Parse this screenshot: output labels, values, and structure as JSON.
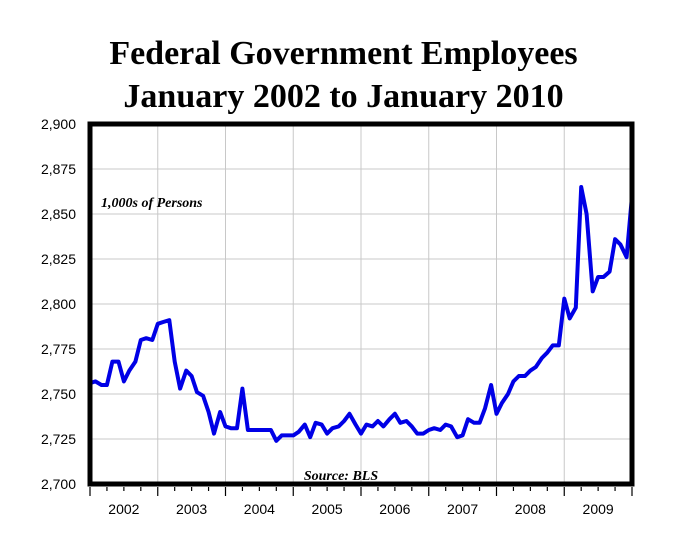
{
  "header": {
    "title_line1": "Federal Government Employees",
    "title_line2": "January 2002 to January 2010"
  },
  "chart_data": {
    "type": "line",
    "title": "Federal Government Employees January 2002 to January 2010",
    "xlabel": "",
    "ylabel": "",
    "ylim": [
      2700,
      2900
    ],
    "xlim": [
      2002.0,
      2010.0
    ],
    "grid": true,
    "line_color": "#0000e6",
    "y_ticks": [
      "2,700",
      "2,725",
      "2,750",
      "2,775",
      "2,800",
      "2,825",
      "2,850",
      "2,875",
      "2,900"
    ],
    "x_tick_labels": [
      "2002",
      "2003",
      "2004",
      "2005",
      "2006",
      "2007",
      "2008",
      "2009"
    ],
    "annotations": {
      "units": "1,000s of Persons",
      "source": "Source: BLS"
    },
    "series": [
      {
        "values": [
          [
            2002.0,
            2756
          ],
          [
            2002.08,
            2757
          ],
          [
            2002.17,
            2755
          ],
          [
            2002.25,
            2755
          ],
          [
            2002.33,
            2768
          ],
          [
            2002.42,
            2768
          ],
          [
            2002.5,
            2757
          ],
          [
            2002.58,
            2763
          ],
          [
            2002.67,
            2768
          ],
          [
            2002.75,
            2780
          ],
          [
            2002.83,
            2781
          ],
          [
            2002.92,
            2780
          ],
          [
            2003.0,
            2789
          ],
          [
            2003.08,
            2790
          ],
          [
            2003.17,
            2791
          ],
          [
            2003.25,
            2768
          ],
          [
            2003.33,
            2753
          ],
          [
            2003.42,
            2763
          ],
          [
            2003.5,
            2760
          ],
          [
            2003.58,
            2751
          ],
          [
            2003.67,
            2749
          ],
          [
            2003.75,
            2740
          ],
          [
            2003.83,
            2728
          ],
          [
            2003.92,
            2740
          ],
          [
            2004.0,
            2732
          ],
          [
            2004.08,
            2731
          ],
          [
            2004.17,
            2731
          ],
          [
            2004.25,
            2753
          ],
          [
            2004.33,
            2730
          ],
          [
            2004.42,
            2730
          ],
          [
            2004.5,
            2730
          ],
          [
            2004.58,
            2730
          ],
          [
            2004.67,
            2730
          ],
          [
            2004.75,
            2724
          ],
          [
            2004.83,
            2727
          ],
          [
            2004.92,
            2727
          ],
          [
            2005.0,
            2727
          ],
          [
            2005.08,
            2729
          ],
          [
            2005.17,
            2733
          ],
          [
            2005.25,
            2726
          ],
          [
            2005.33,
            2734
          ],
          [
            2005.42,
            2733
          ],
          [
            2005.5,
            2728
          ],
          [
            2005.58,
            2731
          ],
          [
            2005.67,
            2732
          ],
          [
            2005.75,
            2735
          ],
          [
            2005.83,
            2739
          ],
          [
            2005.92,
            2733
          ],
          [
            2006.0,
            2728
          ],
          [
            2006.08,
            2733
          ],
          [
            2006.17,
            2732
          ],
          [
            2006.25,
            2735
          ],
          [
            2006.33,
            2732
          ],
          [
            2006.42,
            2736
          ],
          [
            2006.5,
            2739
          ],
          [
            2006.58,
            2734
          ],
          [
            2006.67,
            2735
          ],
          [
            2006.75,
            2732
          ],
          [
            2006.83,
            2728
          ],
          [
            2006.92,
            2728
          ],
          [
            2007.0,
            2730
          ],
          [
            2007.08,
            2731
          ],
          [
            2007.17,
            2730
          ],
          [
            2007.25,
            2733
          ],
          [
            2007.33,
            2732
          ],
          [
            2007.42,
            2726
          ],
          [
            2007.5,
            2727
          ],
          [
            2007.58,
            2736
          ],
          [
            2007.67,
            2734
          ],
          [
            2007.75,
            2734
          ],
          [
            2007.83,
            2742
          ],
          [
            2007.92,
            2755
          ],
          [
            2008.0,
            2739
          ],
          [
            2008.08,
            2745
          ],
          [
            2008.17,
            2750
          ],
          [
            2008.25,
            2757
          ],
          [
            2008.33,
            2760
          ],
          [
            2008.42,
            2760
          ],
          [
            2008.5,
            2763
          ],
          [
            2008.58,
            2765
          ],
          [
            2008.67,
            2770
          ],
          [
            2008.75,
            2773
          ],
          [
            2008.83,
            2777
          ],
          [
            2008.92,
            2777
          ],
          [
            2009.0,
            2803
          ],
          [
            2009.08,
            2792
          ],
          [
            2009.17,
            2798
          ],
          [
            2009.25,
            2865
          ],
          [
            2009.33,
            2850
          ],
          [
            2009.42,
            2807
          ],
          [
            2009.5,
            2815
          ],
          [
            2009.58,
            2815
          ],
          [
            2009.67,
            2818
          ],
          [
            2009.75,
            2836
          ],
          [
            2009.83,
            2833
          ],
          [
            2009.92,
            2826
          ],
          [
            2010.0,
            2860
          ]
        ]
      }
    ]
  }
}
